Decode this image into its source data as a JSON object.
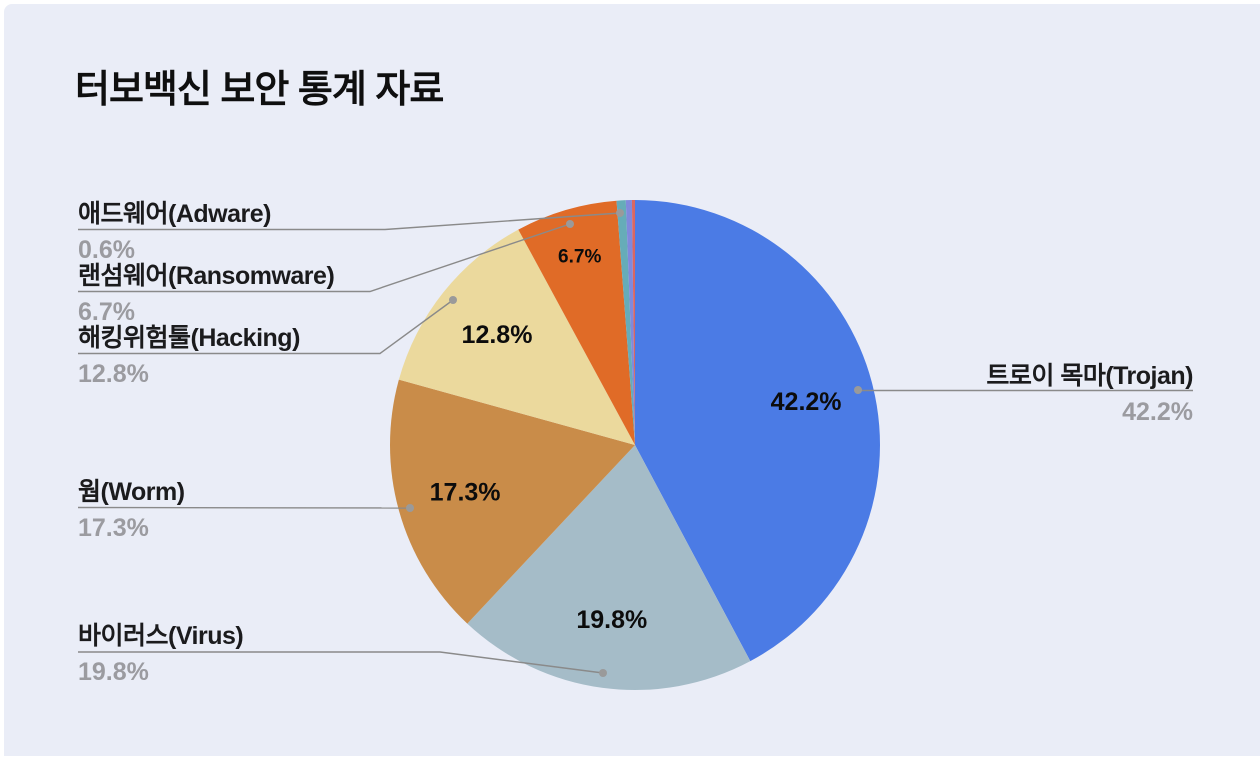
{
  "page": {
    "background_color": "#ffffff",
    "canvas_color": "#eaedf7"
  },
  "title": {
    "plain": "터보백신 ",
    "highlight": "보안 통계 자료",
    "highlight_color": "#ffd900"
  },
  "chart_data": {
    "type": "pie",
    "title": "터보백신 보안 통계 자료",
    "unit": "%",
    "start_angle_deg": 0,
    "direction": "clockwise",
    "legend_position": "callout-labels",
    "slices": [
      {
        "label": "트로이 목마(Trojan)",
        "value": 42.2,
        "display": "42.2%",
        "color": "#4b7be5",
        "show_inner": true
      },
      {
        "label": "바이러스(Virus)",
        "value": 19.8,
        "display": "19.8%",
        "color": "#a5bcc8",
        "show_inner": true
      },
      {
        "label": "웜(Worm)",
        "value": 17.3,
        "display": "17.3%",
        "color": "#c98c49",
        "show_inner": true
      },
      {
        "label": "해킹위험툴(Hacking)",
        "value": 12.8,
        "display": "12.8%",
        "color": "#ebd99d",
        "show_inner": true
      },
      {
        "label": "랜섬웨어(Ransomware)",
        "value": 6.7,
        "display": "6.7%",
        "color": "#e06b27",
        "show_inner": true
      },
      {
        "label": "애드웨어(Adware)",
        "value": 0.6,
        "display": "0.6%",
        "color": "#66acb8",
        "show_inner": false
      },
      {
        "label": "",
        "value": 0.4,
        "display": "",
        "color": "#8089dc",
        "show_inner": false
      },
      {
        "label": "",
        "value": 0.2,
        "display": "",
        "color": "#d96762",
        "show_inner": false
      }
    ]
  },
  "callouts": {
    "adware": {
      "label": "애드웨어(Adware)",
      "pct": "0.6%"
    },
    "ransomware": {
      "label": "랜섬웨어(Ransomware)",
      "pct": "6.7%"
    },
    "hacking": {
      "label": "해킹위험툴(Hacking)",
      "pct": "12.8%"
    },
    "worm": {
      "label": "웜(Worm)",
      "pct": "17.3%"
    },
    "virus": {
      "label": "바이러스(Virus)",
      "pct": "19.8%"
    },
    "trojan": {
      "label": "트로이 목마(Trojan)",
      "pct": "42.2%"
    }
  }
}
